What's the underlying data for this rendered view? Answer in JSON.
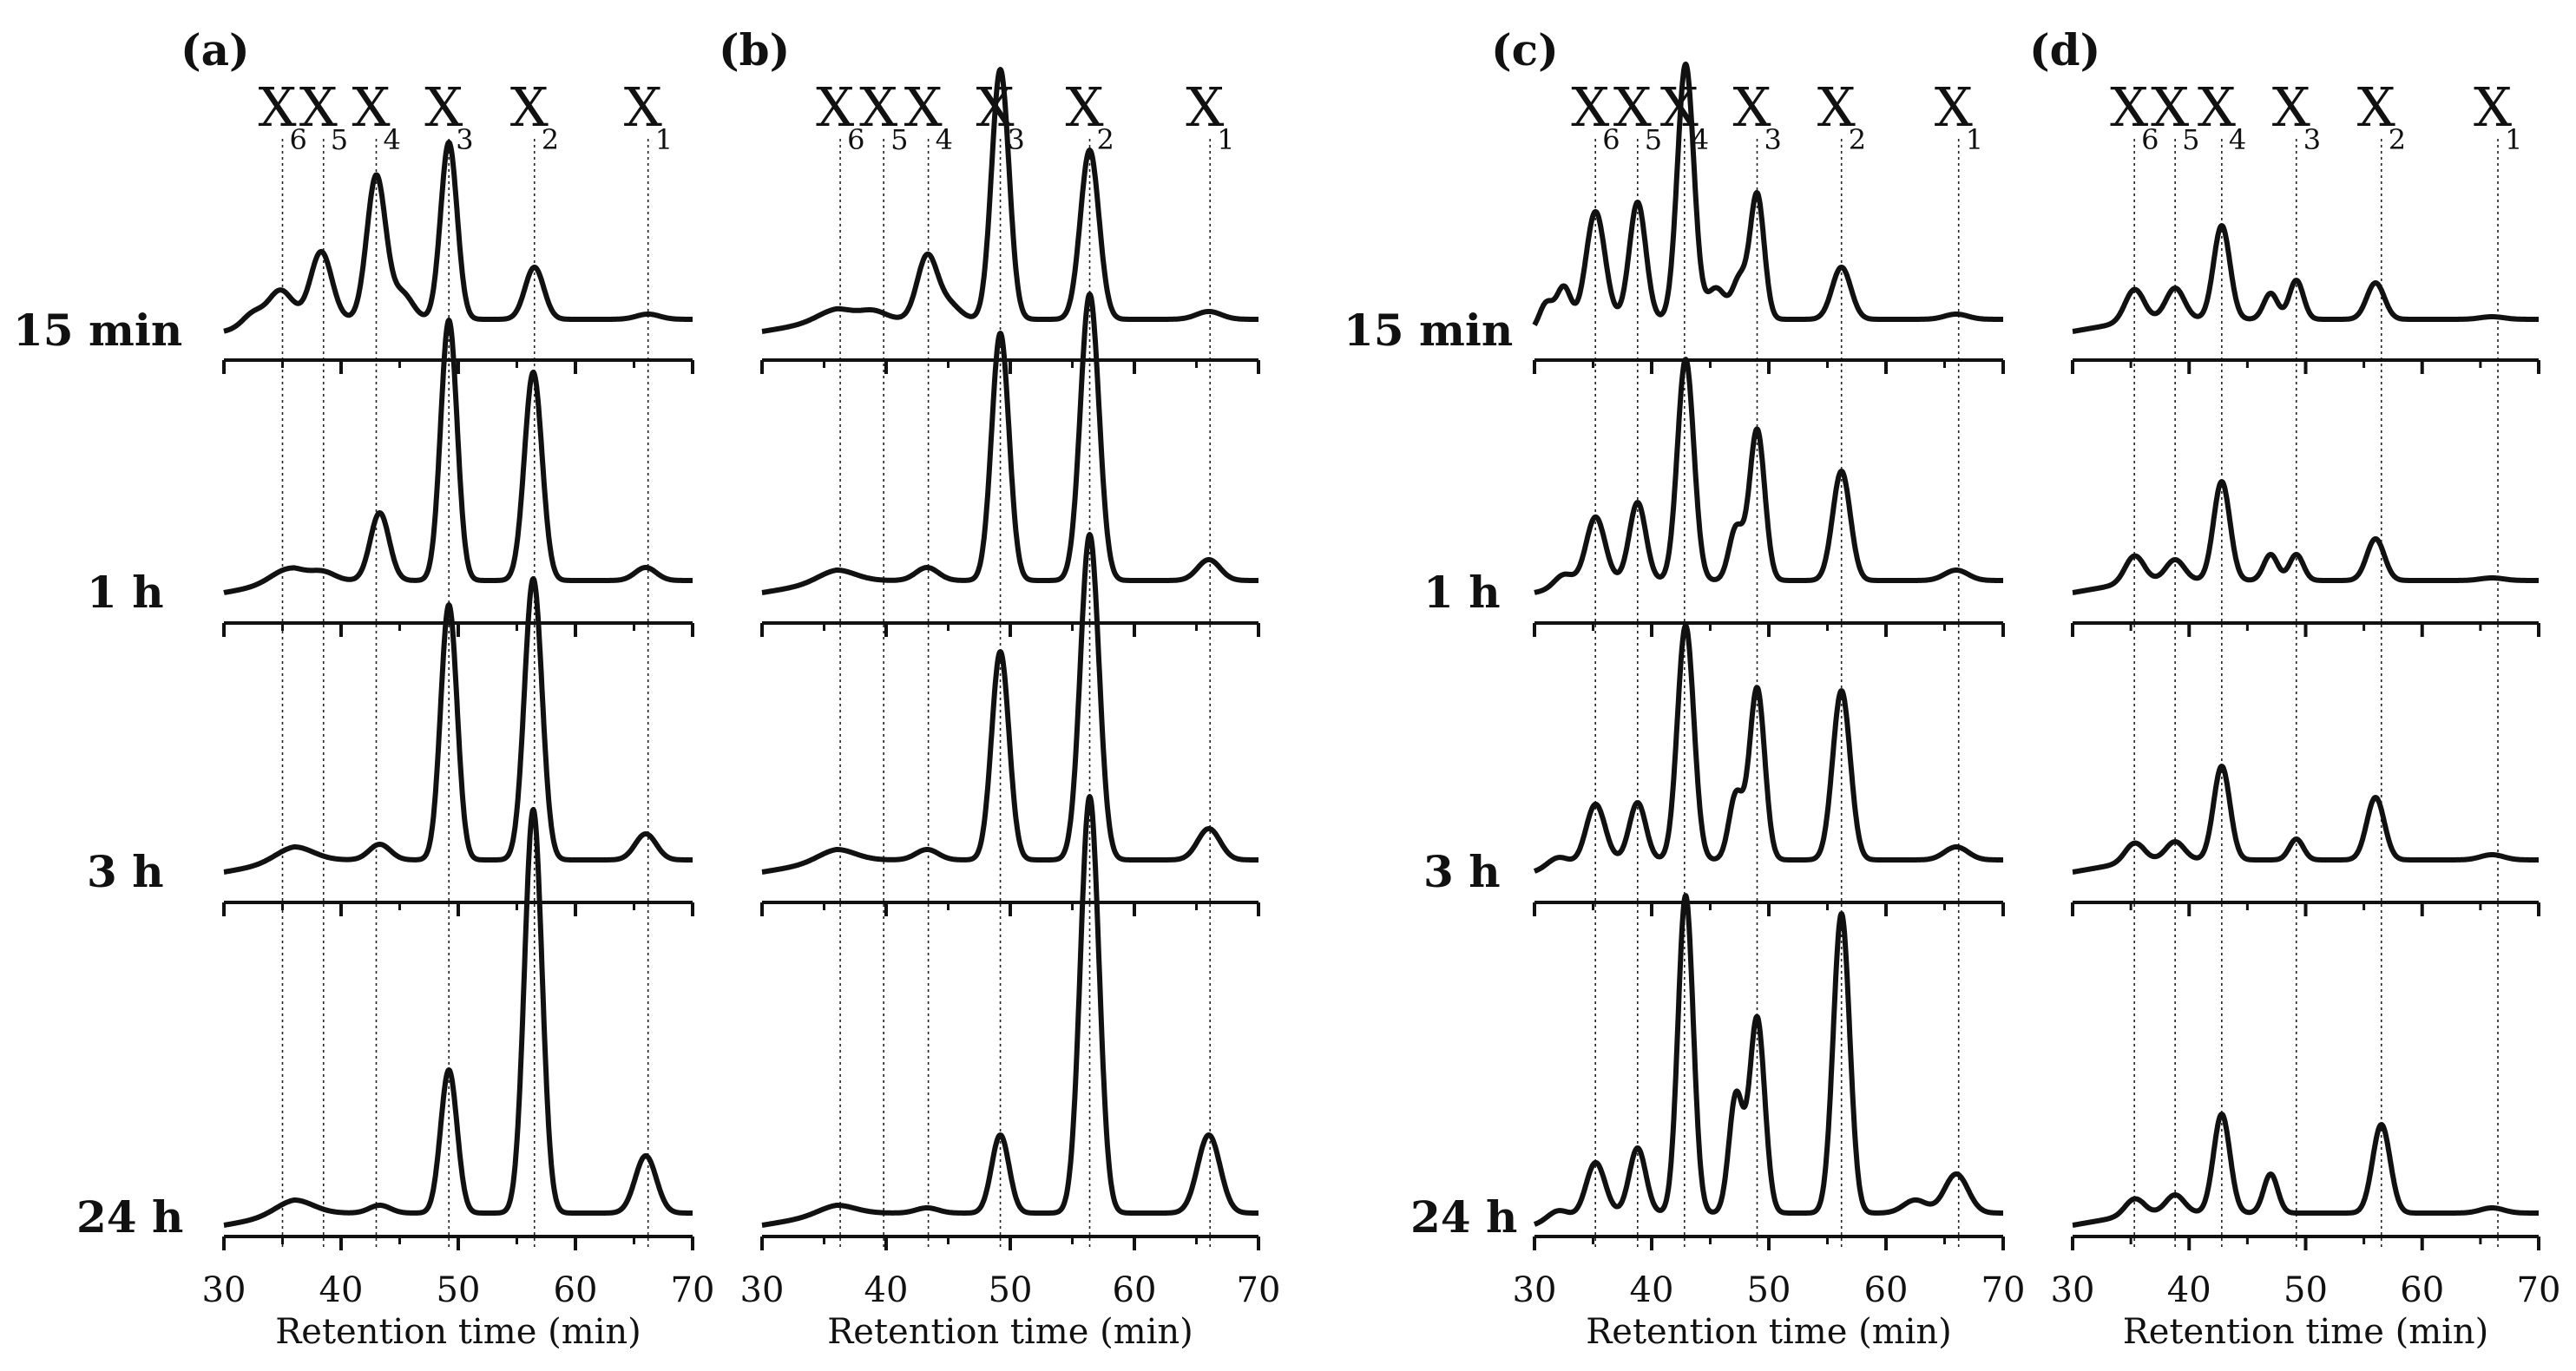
{
  "chart_data": {
    "type": "line",
    "title": "",
    "xlabel": "Retention time (min)",
    "xlim": [
      30,
      70
    ],
    "x_ticks": [
      "30",
      "40",
      "50",
      "60",
      "70"
    ],
    "grid": false,
    "legend": "none",
    "peak_labels": [
      {
        "letter": "X",
        "sub": "6"
      },
      {
        "letter": "X",
        "sub": "5"
      },
      {
        "letter": "X",
        "sub": "4"
      },
      {
        "letter": "X",
        "sub": "3"
      },
      {
        "letter": "X",
        "sub": "2"
      },
      {
        "letter": "X",
        "sub": "1"
      }
    ],
    "time_labels": [
      "15 min",
      "1 h",
      "3 h",
      "24 h"
    ],
    "panels": [
      {
        "label": "(a)",
        "reference_retention_times": [
          35.0,
          38.5,
          43.0,
          49.2,
          56.5,
          66.2
        ],
        "traces": [
          {
            "time": "15 min",
            "peaks": [
              {
                "rt": 32.5,
                "height": 0.05,
                "width": 0.9
              },
              {
                "rt": 34.8,
                "height": 0.12,
                "width": 1.0
              },
              {
                "rt": 38.3,
                "height": 0.26,
                "width": 0.9
              },
              {
                "rt": 43.0,
                "height": 0.55,
                "width": 0.8
              },
              {
                "rt": 45.2,
                "height": 0.1,
                "width": 0.9
              },
              {
                "rt": 49.2,
                "height": 0.68,
                "width": 0.7
              },
              {
                "rt": 56.5,
                "height": 0.2,
                "width": 0.8
              },
              {
                "rt": 66.2,
                "height": 0.02,
                "width": 1.0
              }
            ]
          },
          {
            "time": "1 h",
            "peaks": [
              {
                "rt": 35.5,
                "height": 0.05,
                "width": 1.5
              },
              {
                "rt": 38.5,
                "height": 0.03,
                "width": 1.0
              },
              {
                "rt": 43.3,
                "height": 0.26,
                "width": 0.8
              },
              {
                "rt": 49.2,
                "height": 1.0,
                "width": 0.7
              },
              {
                "rt": 56.4,
                "height": 0.8,
                "width": 0.75
              },
              {
                "rt": 66.0,
                "height": 0.05,
                "width": 0.9
              }
            ]
          },
          {
            "time": "3 h",
            "peaks": [
              {
                "rt": 36.0,
                "height": 0.05,
                "width": 1.6
              },
              {
                "rt": 43.3,
                "height": 0.06,
                "width": 0.9
              },
              {
                "rt": 49.2,
                "height": 0.98,
                "width": 0.7
              },
              {
                "rt": 56.4,
                "height": 1.08,
                "width": 0.75
              },
              {
                "rt": 66.0,
                "height": 0.1,
                "width": 0.9
              }
            ]
          },
          {
            "time": "24 h",
            "peaks": [
              {
                "rt": 36.0,
                "height": 0.05,
                "width": 1.6
              },
              {
                "rt": 43.3,
                "height": 0.03,
                "width": 0.9
              },
              {
                "rt": 49.2,
                "height": 0.55,
                "width": 0.7
              },
              {
                "rt": 56.4,
                "height": 1.55,
                "width": 0.75
              },
              {
                "rt": 66.0,
                "height": 0.22,
                "width": 0.9
              }
            ]
          }
        ]
      },
      {
        "label": "(b)",
        "reference_retention_times": [
          36.3,
          39.8,
          43.4,
          49.2,
          56.4,
          66.1
        ],
        "traces": [
          {
            "time": "15 min",
            "peaks": [
              {
                "rt": 36.0,
                "height": 0.04,
                "width": 1.5
              },
              {
                "rt": 39.0,
                "height": 0.03,
                "width": 1.0
              },
              {
                "rt": 43.3,
                "height": 0.24,
                "width": 0.8
              },
              {
                "rt": 45.0,
                "height": 0.06,
                "width": 0.9
              },
              {
                "rt": 49.2,
                "height": 0.96,
                "width": 0.7
              },
              {
                "rt": 56.4,
                "height": 0.65,
                "width": 0.75
              },
              {
                "rt": 66.0,
                "height": 0.03,
                "width": 1.0
              }
            ]
          },
          {
            "time": "1 h",
            "peaks": [
              {
                "rt": 36.0,
                "height": 0.04,
                "width": 1.5
              },
              {
                "rt": 43.3,
                "height": 0.05,
                "width": 0.9
              },
              {
                "rt": 49.2,
                "height": 0.95,
                "width": 0.7
              },
              {
                "rt": 56.4,
                "height": 1.1,
                "width": 0.75
              },
              {
                "rt": 66.0,
                "height": 0.08,
                "width": 0.9
              }
            ]
          },
          {
            "time": "3 h",
            "peaks": [
              {
                "rt": 36.0,
                "height": 0.04,
                "width": 1.5
              },
              {
                "rt": 43.3,
                "height": 0.04,
                "width": 0.9
              },
              {
                "rt": 49.2,
                "height": 0.8,
                "width": 0.7
              },
              {
                "rt": 56.4,
                "height": 1.25,
                "width": 0.75
              },
              {
                "rt": 66.0,
                "height": 0.12,
                "width": 0.9
              }
            ]
          },
          {
            "time": "24 h",
            "peaks": [
              {
                "rt": 36.0,
                "height": 0.03,
                "width": 1.5
              },
              {
                "rt": 43.3,
                "height": 0.02,
                "width": 0.9
              },
              {
                "rt": 49.2,
                "height": 0.3,
                "width": 0.7
              },
              {
                "rt": 56.4,
                "height": 1.6,
                "width": 0.75
              },
              {
                "rt": 66.0,
                "height": 0.3,
                "width": 0.9
              }
            ]
          }
        ]
      },
      {
        "label": "(c)",
        "reference_retention_times": [
          35.2,
          38.8,
          42.8,
          49.0,
          56.2,
          66.2
        ],
        "traces": [
          {
            "time": "15 min",
            "peaks": [
              {
                "rt": 31.0,
                "height": 0.1,
                "width": 0.6
              },
              {
                "rt": 32.5,
                "height": 0.15,
                "width": 0.6
              },
              {
                "rt": 35.2,
                "height": 0.42,
                "width": 0.8
              },
              {
                "rt": 38.8,
                "height": 0.45,
                "width": 0.7
              },
              {
                "rt": 42.9,
                "height": 0.98,
                "width": 0.7
              },
              {
                "rt": 45.5,
                "height": 0.12,
                "width": 0.8
              },
              {
                "rt": 47.5,
                "height": 0.15,
                "width": 0.6
              },
              {
                "rt": 49.0,
                "height": 0.48,
                "width": 0.6
              },
              {
                "rt": 56.2,
                "height": 0.2,
                "width": 0.8
              },
              {
                "rt": 66.0,
                "height": 0.02,
                "width": 1.0
              }
            ]
          },
          {
            "time": "1 h",
            "peaks": [
              {
                "rt": 32.5,
                "height": 0.05,
                "width": 0.8
              },
              {
                "rt": 35.2,
                "height": 0.25,
                "width": 0.8
              },
              {
                "rt": 38.8,
                "height": 0.3,
                "width": 0.7
              },
              {
                "rt": 42.9,
                "height": 0.85,
                "width": 0.7
              },
              {
                "rt": 47.2,
                "height": 0.2,
                "width": 0.6
              },
              {
                "rt": 49.0,
                "height": 0.58,
                "width": 0.65
              },
              {
                "rt": 56.2,
                "height": 0.42,
                "width": 0.75
              },
              {
                "rt": 66.0,
                "height": 0.04,
                "width": 1.0
              }
            ]
          },
          {
            "time": "3 h",
            "peaks": [
              {
                "rt": 32.0,
                "height": 0.04,
                "width": 0.9
              },
              {
                "rt": 35.2,
                "height": 0.22,
                "width": 0.8
              },
              {
                "rt": 38.8,
                "height": 0.22,
                "width": 0.7
              },
              {
                "rt": 42.9,
                "height": 0.9,
                "width": 0.7
              },
              {
                "rt": 47.2,
                "height": 0.25,
                "width": 0.6
              },
              {
                "rt": 49.0,
                "height": 0.66,
                "width": 0.65
              },
              {
                "rt": 56.2,
                "height": 0.65,
                "width": 0.75
              },
              {
                "rt": 66.0,
                "height": 0.05,
                "width": 1.0
              }
            ]
          },
          {
            "time": "24 h",
            "peaks": [
              {
                "rt": 32.0,
                "height": 0.04,
                "width": 0.9
              },
              {
                "rt": 35.2,
                "height": 0.2,
                "width": 0.8
              },
              {
                "rt": 38.8,
                "height": 0.25,
                "width": 0.7
              },
              {
                "rt": 42.9,
                "height": 1.22,
                "width": 0.65
              },
              {
                "rt": 47.2,
                "height": 0.45,
                "width": 0.6
              },
              {
                "rt": 49.0,
                "height": 0.75,
                "width": 0.65
              },
              {
                "rt": 56.2,
                "height": 1.15,
                "width": 0.7
              },
              {
                "rt": 62.5,
                "height": 0.05,
                "width": 1.0
              },
              {
                "rt": 66.0,
                "height": 0.15,
                "width": 1.0
              }
            ]
          }
        ]
      },
      {
        "label": "(d)",
        "reference_retention_times": [
          35.3,
          38.8,
          42.8,
          49.2,
          56.5,
          66.5
        ],
        "traces": [
          {
            "time": "15 min",
            "peaks": [
              {
                "rt": 35.3,
                "height": 0.12,
                "width": 0.8
              },
              {
                "rt": 38.8,
                "height": 0.12,
                "width": 0.8
              },
              {
                "rt": 42.8,
                "height": 0.36,
                "width": 0.7
              },
              {
                "rt": 47.0,
                "height": 0.1,
                "width": 0.6
              },
              {
                "rt": 49.2,
                "height": 0.15,
                "width": 0.6
              },
              {
                "rt": 56.0,
                "height": 0.14,
                "width": 0.75
              },
              {
                "rt": 66.0,
                "height": 0.01,
                "width": 1.0
              }
            ]
          },
          {
            "time": "1 h",
            "peaks": [
              {
                "rt": 35.3,
                "height": 0.1,
                "width": 0.8
              },
              {
                "rt": 38.8,
                "height": 0.08,
                "width": 0.8
              },
              {
                "rt": 42.8,
                "height": 0.38,
                "width": 0.7
              },
              {
                "rt": 47.0,
                "height": 0.1,
                "width": 0.6
              },
              {
                "rt": 49.2,
                "height": 0.1,
                "width": 0.6
              },
              {
                "rt": 56.0,
                "height": 0.16,
                "width": 0.75
              },
              {
                "rt": 66.0,
                "height": 0.01,
                "width": 1.0
              }
            ]
          },
          {
            "time": "3 h",
            "peaks": [
              {
                "rt": 35.3,
                "height": 0.07,
                "width": 0.8
              },
              {
                "rt": 38.8,
                "height": 0.07,
                "width": 0.8
              },
              {
                "rt": 42.8,
                "height": 0.36,
                "width": 0.7
              },
              {
                "rt": 49.2,
                "height": 0.08,
                "width": 0.6
              },
              {
                "rt": 56.0,
                "height": 0.24,
                "width": 0.75
              },
              {
                "rt": 66.0,
                "height": 0.02,
                "width": 1.0
              }
            ]
          },
          {
            "time": "24 h",
            "peaks": [
              {
                "rt": 35.3,
                "height": 0.06,
                "width": 0.8
              },
              {
                "rt": 38.8,
                "height": 0.07,
                "width": 0.8
              },
              {
                "rt": 42.8,
                "height": 0.38,
                "width": 0.7
              },
              {
                "rt": 47.0,
                "height": 0.15,
                "width": 0.6
              },
              {
                "rt": 56.5,
                "height": 0.34,
                "width": 0.75
              },
              {
                "rt": 66.0,
                "height": 0.02,
                "width": 1.0
              }
            ]
          }
        ]
      }
    ]
  }
}
